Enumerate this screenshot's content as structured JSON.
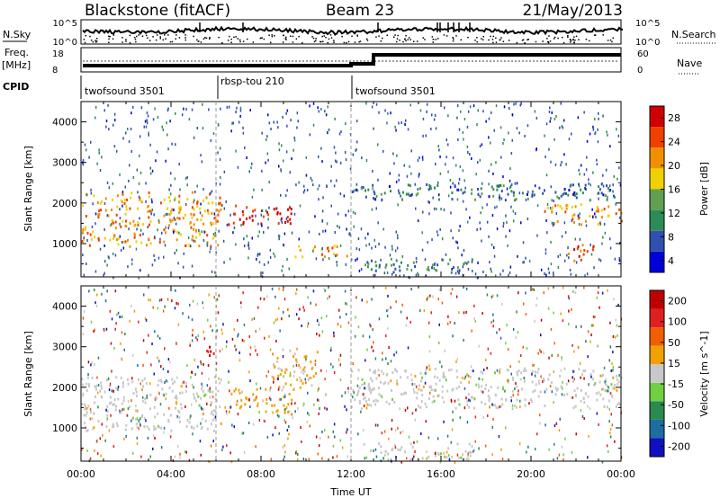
{
  "header": {
    "station": "Blackstone (fitACF)",
    "beam": "Beam 23",
    "date": "21/May/2013"
  },
  "strip": {
    "nsky_label": "N.Sky",
    "nsearch_label": "N.Search",
    "noise_ticks": [
      "10^5",
      "10^0"
    ],
    "freq_label": "Freq.",
    "freq_unit": "[MHz]",
    "freq_ticks": [
      "18",
      "8"
    ],
    "nave_label": "Nave",
    "nave_ticks": [
      "60",
      "0"
    ],
    "cpid_label": "CPID",
    "cpid_segments": [
      {
        "name": "twofsound 3501",
        "start": 0,
        "end": 6
      },
      {
        "name": "rbsp-tou 210",
        "start": 6,
        "end": 12
      },
      {
        "name": "twofsound 3501",
        "start": 12,
        "end": 24
      }
    ]
  },
  "chart_data": [
    {
      "type": "heatmap",
      "title": "",
      "xlabel": "",
      "ylabel": "Slant Range [km]",
      "xlim": [
        0,
        24
      ],
      "ylim": [
        180,
        4500
      ],
      "ytick_labels": [
        "1000",
        "2000",
        "3000",
        "4000"
      ],
      "colorbar": {
        "label": "Power [dB]",
        "range": [
          0,
          30
        ],
        "tick_labels": [
          "28",
          "24",
          "20",
          "16",
          "12",
          "8",
          "4"
        ],
        "colors": [
          "#0000d8",
          "#3050b0",
          "#2e8b57",
          "#60a050",
          "#f0d000",
          "#f09000",
          "#f04000",
          "#d00000"
        ]
      },
      "features": [
        {
          "hours": [
            0,
            6.2
          ],
          "range_km": [
            950,
            2300
          ],
          "power_db": 20
        },
        {
          "hours": [
            6.5,
            9.5
          ],
          "range_km": [
            1500,
            2000
          ],
          "power_db": 28
        },
        {
          "hours": [
            9.5,
            12
          ],
          "range_km": [
            700,
            1000
          ],
          "power_db": 22
        },
        {
          "hours": [
            12.5,
            17.5
          ],
          "range_km": [
            300,
            650
          ],
          "power_db": 10
        },
        {
          "hours": [
            12,
            24
          ],
          "range_km": [
            2100,
            2500
          ],
          "power_db": 8
        },
        {
          "hours": [
            20.5,
            24
          ],
          "range_km": [
            1500,
            2000
          ],
          "power_db": 20
        },
        {
          "hours": [
            21.5,
            23
          ],
          "range_km": [
            600,
            1000
          ],
          "power_db": 24
        }
      ]
    },
    {
      "type": "heatmap",
      "title": "",
      "xlabel": "Time UT",
      "ylabel": "Slant Range [km]",
      "xlim": [
        0,
        24
      ],
      "ylim": [
        180,
        4500
      ],
      "xtick_labels": [
        "00:00",
        "04:00",
        "08:00",
        "12:00",
        "16:00",
        "20:00",
        "00:00"
      ],
      "ytick_labels": [
        "1000",
        "2000",
        "3000",
        "4000"
      ],
      "colorbar": {
        "label": "Velocity [m s^-1]",
        "range": [
          -250,
          250
        ],
        "tick_labels": [
          "200",
          "100",
          "50",
          "15",
          "-15",
          "-50",
          "-100",
          "-200"
        ],
        "colors": [
          "#1010c0",
          "#1c6ea0",
          "#2a8a50",
          "#70d040",
          "#c8c8c8",
          "#f0a000",
          "#f06000",
          "#e02020",
          "#c00000"
        ]
      },
      "features": [
        {
          "hours": [
            0,
            6.2
          ],
          "range_km": [
            950,
            2300
          ],
          "velocity_ms": 0
        },
        {
          "hours": [
            6.5,
            9.5
          ],
          "range_km": [
            1400,
            2000
          ],
          "velocity_ms": 40
        },
        {
          "hours": [
            8.5,
            10.5
          ],
          "range_km": [
            2000,
            3000
          ],
          "velocity_ms": 35
        },
        {
          "hours": [
            5.5,
            6.2
          ],
          "range_km": [
            2800,
            3100
          ],
          "velocity_ms": 200
        },
        {
          "hours": [
            12,
            24
          ],
          "range_km": [
            1500,
            2500
          ],
          "velocity_ms": 0
        },
        {
          "hours": [
            12.5,
            17.5
          ],
          "range_km": [
            250,
            650
          ],
          "velocity_ms": 0
        }
      ]
    }
  ]
}
